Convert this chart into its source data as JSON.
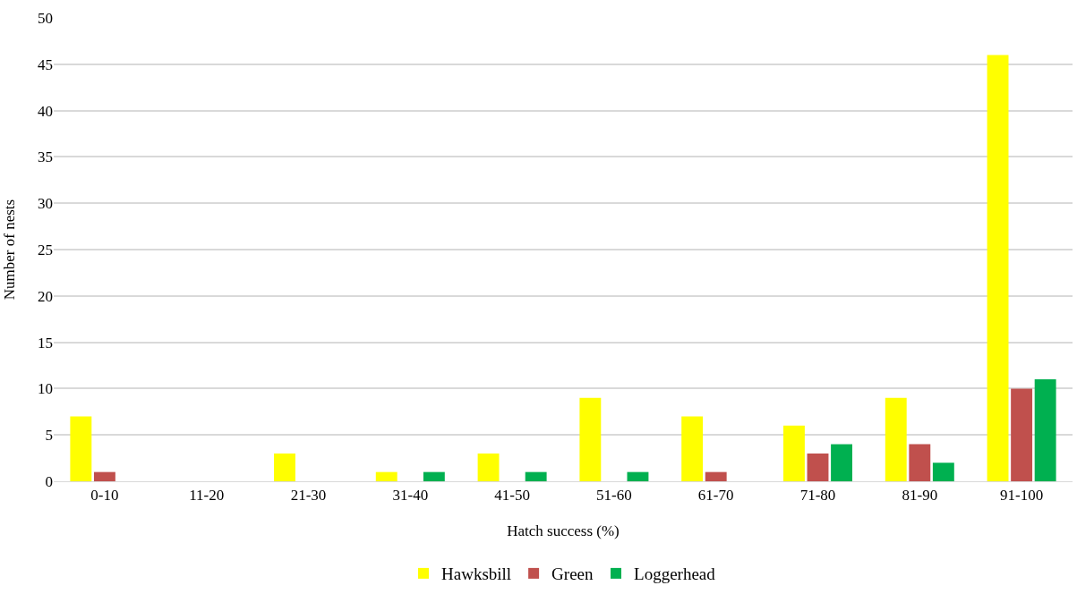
{
  "chart_data": {
    "type": "bar",
    "xlabel": "Hatch success (%)",
    "ylabel": "Number of nests",
    "categories": [
      "0-10",
      "11-20",
      "21-30",
      "31-40",
      "41-50",
      "51-60",
      "61-70",
      "71-80",
      "81-90",
      "91-100"
    ],
    "series": [
      {
        "name": "Hawksbill",
        "color": "#ffff00",
        "values": [
          7,
          0,
          3,
          1,
          3,
          9,
          7,
          6,
          9,
          46
        ]
      },
      {
        "name": "Green",
        "color": "#c0504d",
        "values": [
          1,
          0,
          0,
          0,
          0,
          0,
          1,
          3,
          4,
          10
        ]
      },
      {
        "name": "Loggerhead",
        "color": "#00b050",
        "values": [
          0,
          0,
          0,
          1,
          1,
          1,
          0,
          4,
          2,
          11
        ]
      }
    ],
    "ylim": [
      0,
      50
    ],
    "yticks": [
      0,
      5,
      10,
      15,
      20,
      25,
      30,
      35,
      40,
      45,
      50
    ],
    "grid": "y",
    "legend": "bottom"
  }
}
